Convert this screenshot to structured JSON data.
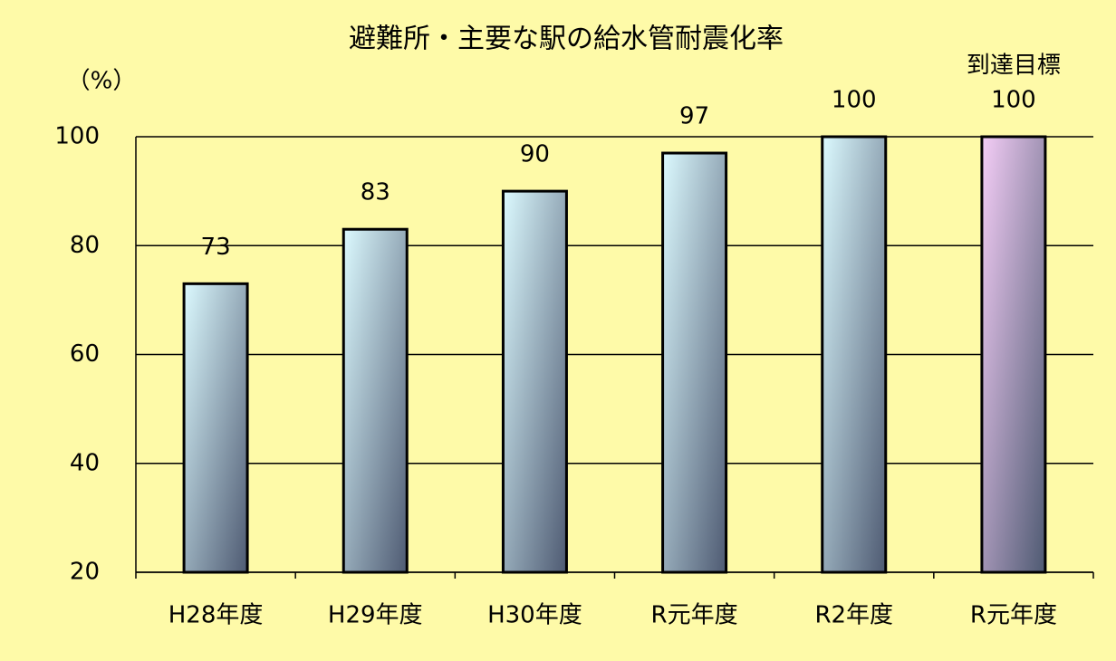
{
  "chart_data": {
    "type": "bar",
    "title": "避難所・主要な駅の給水管耐震化率",
    "y_label": "（%）",
    "annotation": "到達目標",
    "categories": [
      "H28年度",
      "H29年度",
      "H30年度",
      "R元年度",
      "R2年度",
      "R元年度"
    ],
    "values": [
      73,
      83,
      90,
      97,
      100,
      100
    ],
    "colors": [
      "#dcfaff",
      "#dcfaff",
      "#dcfaff",
      "#dcfaff",
      "#dcfaff",
      "#f4cdf6"
    ],
    "gradient_end": "#4e5a72",
    "ylim": [
      20,
      100
    ],
    "yticks": [
      20,
      40,
      60,
      80,
      100
    ],
    "grid": true
  }
}
